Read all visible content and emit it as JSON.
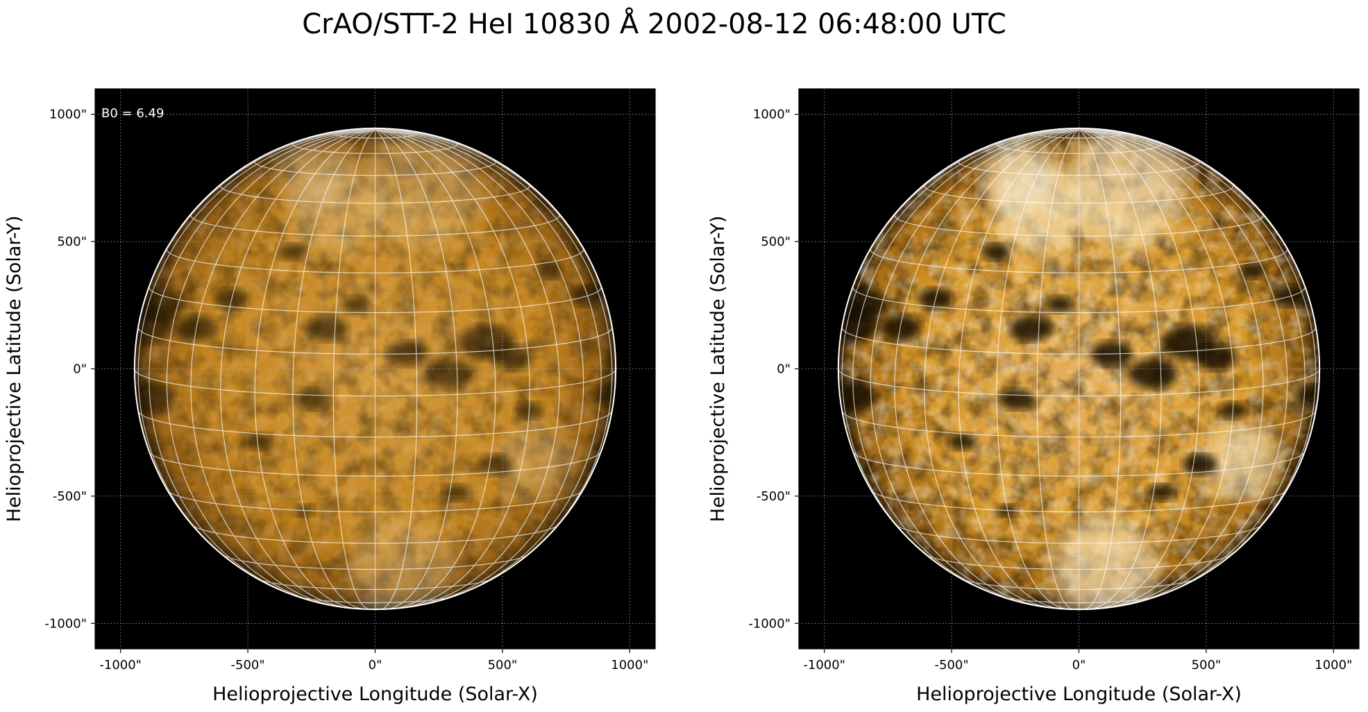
{
  "title": "CrAO/STT-2 HeI 10830 Å 2002-08-12 06:48:00 UTC",
  "colors": {
    "disk_center": "#d49a3c",
    "disk_mid": "#c4851f",
    "disk_limb": "#3a2406",
    "background": "#000000",
    "grid": "#ffffff"
  },
  "chart_data": [
    {
      "type": "heatmap",
      "xlabel": "Helioprojective Longitude (Solar-X)",
      "ylabel": "Helioprojective Latitude (Solar-Y)",
      "xlim": [
        -1100,
        1100
      ],
      "ylim": [
        -1100,
        1100
      ],
      "xticks": [
        -1000,
        -500,
        0,
        500,
        1000
      ],
      "yticks": [
        -1000,
        -500,
        0,
        500,
        1000
      ],
      "xtick_labels": [
        "-1000\"",
        "-500\"",
        "0\"",
        "500\"",
        "1000\""
      ],
      "ytick_labels": [
        "-1000\"",
        "-500\"",
        "0\"",
        "500\"",
        "1000\""
      ],
      "solar_radius_arcsec": 945,
      "b0_deg": 6.49,
      "annotation": "B0 = 6.49",
      "grid": true,
      "contrast": "normal"
    },
    {
      "type": "heatmap",
      "xlabel": "Helioprojective Longitude (Solar-X)",
      "ylabel": "Helioprojective Latitude (Solar-Y)",
      "xlim": [
        -1100,
        1100
      ],
      "ylim": [
        -1100,
        1100
      ],
      "xticks": [
        -1000,
        -500,
        0,
        500,
        1000
      ],
      "yticks": [
        -1000,
        -500,
        0,
        500,
        1000
      ],
      "xtick_labels": [
        "-1000\"",
        "-500\"",
        "0\"",
        "500\"",
        "1000\""
      ],
      "ytick_labels": [
        "-1000\"",
        "-500\"",
        "0\"",
        "500\"",
        "1000\""
      ],
      "solar_radius_arcsec": 945,
      "b0_deg": 6.49,
      "annotation": "",
      "grid": true,
      "contrast": "enhanced"
    }
  ],
  "dark_features": [
    {
      "lon": -80,
      "lat": 12,
      "r": 9
    },
    {
      "lon": -70,
      "lat": 18,
      "r": 7
    },
    {
      "lon": -74,
      "lat": -5,
      "r": 8
    },
    {
      "lon": -50,
      "lat": 14,
      "r": 6
    },
    {
      "lon": -40,
      "lat": 22,
      "r": 5
    },
    {
      "lon": -15,
      "lat": -1,
      "r": 5
    },
    {
      "lon": -12,
      "lat": 16,
      "r": 6
    },
    {
      "lon": -5,
      "lat": 22,
      "r": 4
    },
    {
      "lon": 8,
      "lat": 10,
      "r": 6
    },
    {
      "lon": 18,
      "lat": 5,
      "r": 7
    },
    {
      "lon": 28,
      "lat": 12,
      "r": 8
    },
    {
      "lon": 35,
      "lat": 8,
      "r": 6
    },
    {
      "lon": 40,
      "lat": -5,
      "r": 4
    },
    {
      "lon": 32,
      "lat": -18,
      "r": 5
    },
    {
      "lon": 22,
      "lat": -25,
      "r": 4
    },
    {
      "lon": -20,
      "lat": -30,
      "r": 3
    },
    {
      "lon": -30,
      "lat": -12,
      "r": 4
    },
    {
      "lon": 70,
      "lat": 20,
      "r": 5
    },
    {
      "lon": 78,
      "lat": -5,
      "r": 5
    },
    {
      "lon": 55,
      "lat": 28,
      "r": 4
    },
    {
      "lon": -25,
      "lat": 35,
      "r": 4
    }
  ],
  "bright_features": [
    {
      "lon": 20,
      "lat": 55,
      "r": 16
    },
    {
      "lon": -15,
      "lat": 48,
      "r": 12
    },
    {
      "lon": 45,
      "lat": -18,
      "r": 10
    },
    {
      "lon": 10,
      "lat": -50,
      "r": 14
    },
    {
      "lon": -30,
      "lat": 60,
      "r": 10
    }
  ]
}
